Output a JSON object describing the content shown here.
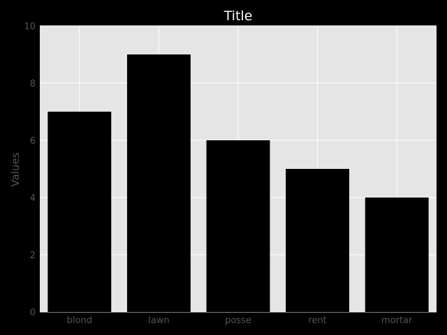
{
  "chart_data": {
    "type": "bar",
    "title": "Title",
    "xlabel": "",
    "ylabel": "Values",
    "categories": [
      "blond",
      "lawn",
      "posse",
      "rent",
      "mortar"
    ],
    "values": [
      7,
      9,
      6,
      5,
      4
    ],
    "ylim": [
      0,
      10
    ],
    "yticks": [
      0,
      2,
      4,
      6,
      8,
      10
    ],
    "grid": true,
    "legend": "none",
    "colors": {
      "background": "#000000",
      "plot_area": "#e5e5e5",
      "grid": "#ffffff",
      "bar": "#000000",
      "tick_label": "#555555",
      "title": "#ffffff"
    }
  }
}
